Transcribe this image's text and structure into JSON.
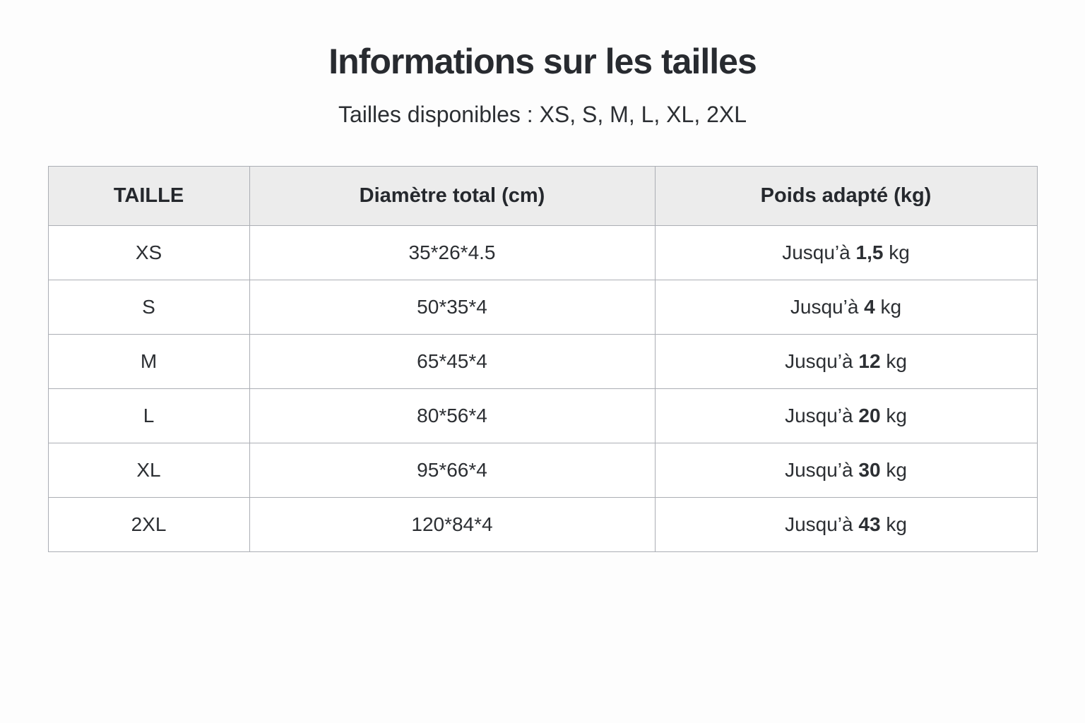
{
  "page": {
    "title": "Informations sur les tailles",
    "subtitle": "Tailles disponibles : XS, S, M, L, XL, 2XL"
  },
  "table": {
    "headers": [
      "TAILLE",
      "Diamètre total (cm)",
      "Poids adapté (kg)"
    ],
    "rows": [
      {
        "size": "XS",
        "diameter": "35*26*4.5",
        "weight_prefix": "Jusqu’à",
        "weight_value": "1,5",
        "weight_unit": "kg"
      },
      {
        "size": "S",
        "diameter": "50*35*4",
        "weight_prefix": "Jusqu’à",
        "weight_value": "4",
        "weight_unit": "kg"
      },
      {
        "size": "M",
        "diameter": "65*45*4",
        "weight_prefix": "Jusqu’à",
        "weight_value": "12",
        "weight_unit": "kg"
      },
      {
        "size": "L",
        "diameter": "80*56*4",
        "weight_prefix": "Jusqu’à",
        "weight_value": "20",
        "weight_unit": "kg"
      },
      {
        "size": "XL",
        "diameter": "95*66*4",
        "weight_prefix": "Jusqu’à",
        "weight_value": "30",
        "weight_unit": "kg"
      },
      {
        "size": "2XL",
        "diameter": "120*84*4",
        "weight_prefix": "Jusqu’à",
        "weight_value": "43",
        "weight_unit": "kg"
      }
    ]
  },
  "colors": {
    "text": "#2c2f33",
    "title_text": "#282b30",
    "header_bg": "#ececec",
    "cell_bg": "#ffffff",
    "border": "#abaeb4",
    "page_bg": "#fdfdfd"
  }
}
